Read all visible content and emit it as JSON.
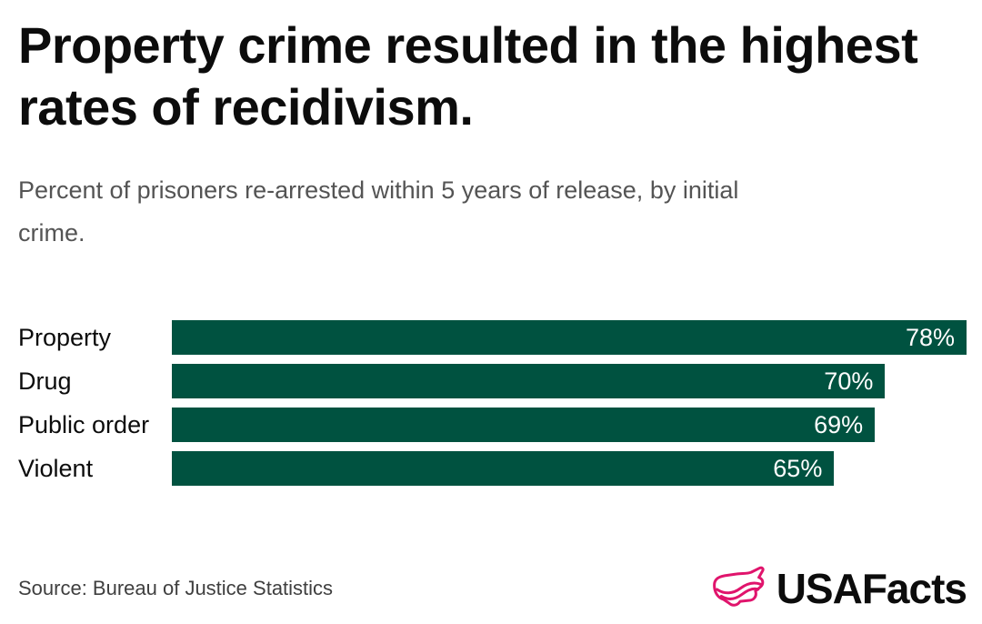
{
  "title": {
    "text": "Property crime resulted in the highest rates of recidivism.",
    "lines": [
      "Property crime resulted in the highest",
      "rates of recidivism."
    ]
  },
  "subtitle": {
    "text": "Percent of prisoners re-arrested within 5 years of release, by initial crime.",
    "lines": [
      "Percent of prisoners re-arrested within 5 years of release, by initial",
      "crime."
    ]
  },
  "chart_data": {
    "type": "bar",
    "orientation": "horizontal",
    "title": "Property crime resulted in the highest rates of recidivism.",
    "subtitle": "Percent of prisoners re-arrested within 5 years of release, by initial crime.",
    "categories": [
      "Property",
      "Drug",
      "Public order",
      "Violent"
    ],
    "values": [
      78,
      70,
      69,
      65
    ],
    "value_labels": [
      "78%",
      "70%",
      "69%",
      "65%"
    ],
    "value_suffix": "%",
    "xlabel": "",
    "ylabel": "",
    "xlim": [
      0,
      78
    ],
    "grid": false,
    "legend": false,
    "value_label_position": "inside-end",
    "bar_color": "#005240",
    "value_label_color": "#ffffff"
  },
  "footer": {
    "source": "Source: Bureau of Justice Statistics",
    "logo_text": "USAFacts",
    "logo_icon": "usa-map-flag-icon",
    "logo_icon_color": "#E0146C",
    "logo_text_color": "#0c0c0c"
  },
  "colors": {
    "background": "#ffffff",
    "bar": "#005240",
    "title": "#0c0c0c",
    "subtitle": "#545454",
    "source": "#3f3f3f",
    "logo_pink": "#E0146C"
  }
}
